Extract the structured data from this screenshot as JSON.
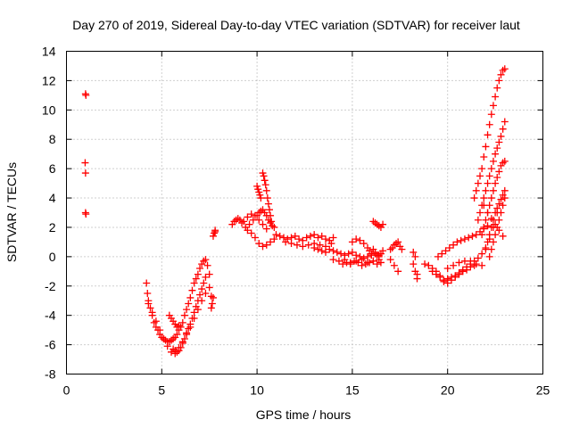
{
  "chart_data": {
    "type": "scatter",
    "title": "Day 270 of 2019, Sidereal Day-to-day VTEC variation (SDTVAR) for receiver laut",
    "xlabel": "GPS time / hours",
    "ylabel": "SDTVAR / TECUs",
    "xlim": [
      0,
      25
    ],
    "ylim": [
      -8,
      14
    ],
    "xticks": [
      0,
      5,
      10,
      15,
      20,
      25
    ],
    "yticks": [
      -8,
      -6,
      -4,
      -2,
      0,
      2,
      4,
      6,
      8,
      10,
      12,
      14
    ],
    "grid": true,
    "marker": "plus",
    "series": [
      {
        "name": "SDTVAR",
        "color": "#ff0000",
        "x": [
          1.0,
          1.02,
          0.98,
          1.0,
          1.02,
          1.0,
          4.2,
          4.25,
          4.3,
          4.4,
          4.5,
          4.6,
          4.7,
          4.8,
          4.9,
          5.0,
          5.1,
          5.2,
          5.3,
          5.4,
          5.5,
          5.6,
          5.7,
          5.8,
          5.9,
          6.0,
          6.1,
          6.2,
          6.3,
          6.4,
          6.5,
          6.6,
          6.7,
          6.8,
          6.9,
          7.0,
          7.1,
          7.2,
          7.3,
          7.4,
          7.5,
          4.3,
          4.5,
          4.7,
          4.9,
          5.1,
          5.3,
          5.5,
          5.7,
          5.9,
          6.1,
          6.3,
          6.5,
          6.7,
          6.9,
          7.1,
          7.3,
          7.5,
          7.6,
          5.6,
          5.7,
          5.8,
          5.9,
          6.0,
          6.1,
          6.2,
          6.3,
          6.4,
          6.5,
          6.6,
          6.7,
          6.8,
          6.9,
          7.0,
          7.1,
          7.2,
          7.3,
          7.6,
          7.65,
          7.7,
          7.7,
          7.75,
          7.8,
          7.8,
          5.4,
          5.5,
          5.6,
          5.7,
          5.8,
          5.9,
          8.7,
          8.8,
          8.9,
          9.0,
          9.1,
          9.2,
          9.4,
          9.6,
          9.8,
          10.0,
          10.1,
          10.2,
          10.3,
          10.4,
          10.5,
          10.6,
          10.7,
          9.5,
          9.7,
          9.9,
          10.1,
          10.3,
          10.5,
          10.7,
          10.9,
          9.3,
          9.5,
          9.7,
          9.9,
          10.1,
          10.3,
          10.5,
          10.0,
          10.05,
          10.1,
          10.15,
          10.2,
          10.3,
          10.35,
          10.4,
          10.45,
          10.5,
          10.55,
          10.6,
          10.65,
          10.7,
          10.75,
          10.8,
          10.9,
          11.0,
          11.2,
          11.4,
          11.6,
          11.8,
          12.0,
          12.2,
          12.4,
          12.6,
          12.8,
          13.0,
          13.2,
          13.4,
          13.6,
          13.8,
          14.0,
          11.5,
          11.8,
          12.1,
          12.4,
          12.7,
          13.0,
          13.3,
          13.6,
          13.9,
          13.0,
          13.2,
          13.4,
          13.6,
          13.8,
          14.0,
          14.2,
          14.4,
          14.6,
          14.8,
          15.0,
          15.2,
          15.4,
          15.6,
          15.8,
          16.0,
          16.2,
          16.4,
          14.0,
          14.3,
          14.6,
          14.9,
          15.2,
          15.5,
          15.8,
          16.1,
          16.4,
          14.5,
          14.7,
          14.9,
          15.1,
          15.3,
          15.5,
          15.7,
          15.9,
          16.1,
          16.3,
          16.5,
          15.0,
          15.2,
          15.4,
          15.6,
          15.8,
          15.9,
          16.0,
          16.1,
          16.2,
          16.3,
          16.4,
          16.5,
          16.6,
          16.1,
          16.2,
          16.3,
          16.4,
          16.5,
          16.6,
          17.0,
          17.1,
          17.2,
          17.3,
          17.4,
          17.5,
          17.6,
          17.0,
          17.2,
          17.4,
          18.2,
          18.3,
          18.4,
          18.3,
          18.2,
          18.4,
          18.8,
          19.0,
          19.2,
          19.4,
          19.6,
          19.8,
          20.0,
          20.2,
          20.4,
          20.6,
          20.8,
          21.0,
          21.2,
          21.4,
          19.2,
          19.4,
          19.6,
          19.8,
          20.0,
          20.2,
          20.4,
          20.6,
          20.8,
          21.0,
          21.2,
          21.4,
          21.6,
          21.8,
          22.0,
          22.2,
          22.4,
          22.6,
          19.5,
          19.7,
          19.9,
          20.1,
          20.3,
          20.5,
          20.7,
          20.9,
          21.1,
          21.3,
          21.5,
          21.7,
          21.9,
          22.1,
          20.0,
          20.3,
          20.6,
          20.9,
          21.2,
          21.5,
          21.8,
          21.4,
          21.5,
          21.6,
          21.7,
          21.8,
          21.9,
          22.0,
          22.1,
          22.2,
          22.3,
          22.4,
          22.5,
          22.6,
          22.7,
          22.8,
          22.9,
          23.0,
          21.6,
          21.7,
          21.8,
          21.9,
          22.0,
          22.1,
          22.2,
          22.3,
          22.4,
          22.5,
          22.6,
          22.7,
          22.8,
          22.9,
          23.0,
          21.8,
          21.9,
          22.0,
          22.1,
          22.2,
          22.3,
          22.4,
          22.5,
          22.6,
          22.7,
          22.8,
          22.9,
          23.0,
          22.0,
          22.1,
          22.2,
          22.3,
          22.4,
          22.5,
          22.6,
          22.7,
          22.8,
          22.9,
          23.0,
          22.2,
          22.3,
          22.4,
          22.5,
          22.6,
          22.7,
          22.8,
          22.9,
          23.0,
          21.9,
          22.1,
          22.3,
          22.5,
          22.7,
          22.9
        ],
        "y": [
          11.1,
          11.0,
          6.4,
          5.7,
          2.9,
          3.0,
          -1.8,
          -2.5,
          -3.0,
          -3.5,
          -4.0,
          -4.5,
          -4.8,
          -5.0,
          -5.3,
          -5.5,
          -5.6,
          -5.7,
          -5.8,
          -5.8,
          -5.7,
          -5.6,
          -5.5,
          -5.3,
          -5.0,
          -4.8,
          -4.5,
          -4.0,
          -3.6,
          -3.2,
          -2.8,
          -2.3,
          -1.8,
          -1.5,
          -1.2,
          -0.8,
          -0.5,
          -0.3,
          -0.2,
          -0.6,
          -1.2,
          -3.2,
          -3.8,
          -4.4,
          -5.0,
          -5.6,
          -6.1,
          -6.5,
          -6.4,
          -6.2,
          -5.8,
          -5.3,
          -4.8,
          -4.2,
          -3.6,
          -3.0,
          -2.5,
          -2.1,
          -2.7,
          -6.3,
          -6.6,
          -6.5,
          -6.4,
          -6.2,
          -5.9,
          -5.6,
          -5.2,
          -4.9,
          -4.6,
          -4.2,
          -3.8,
          -3.4,
          -3.0,
          -2.6,
          -2.2,
          -1.8,
          -1.4,
          -3.5,
          -3.2,
          -2.8,
          1.4,
          1.6,
          1.7,
          1.8,
          -4.0,
          -4.2,
          -4.4,
          -4.6,
          -4.8,
          -4.7,
          2.2,
          2.4,
          2.5,
          2.6,
          2.5,
          2.3,
          2.0,
          2.2,
          2.5,
          2.8,
          3.0,
          3.1,
          3.2,
          3.0,
          2.8,
          2.5,
          2.3,
          1.8,
          1.6,
          1.3,
          0.9,
          0.7,
          0.8,
          1.0,
          1.2,
          2.4,
          2.7,
          2.9,
          2.8,
          2.5,
          2.2,
          1.9,
          4.8,
          4.6,
          4.4,
          4.2,
          4.0,
          5.7,
          5.5,
          5.2,
          4.9,
          4.5,
          4.0,
          3.6,
          3.2,
          2.8,
          2.4,
          2.1,
          2.0,
          1.5,
          1.4,
          1.3,
          1.2,
          1.3,
          1.4,
          1.2,
          1.1,
          1.3,
          1.4,
          1.5,
          1.3,
          1.4,
          1.2,
          1.1,
          1.3,
          1.0,
          0.9,
          0.8,
          0.7,
          0.8,
          0.9,
          0.8,
          0.7,
          0.9,
          0.6,
          0.5,
          0.4,
          0.3,
          0.5,
          0.4,
          0.3,
          0.2,
          0.1,
          0.2,
          0.3,
          0.1,
          0.0,
          -0.1,
          0.0,
          0.1,
          0.2,
          0.1,
          -0.2,
          -0.3,
          -0.2,
          -0.4,
          -0.3,
          -0.2,
          -0.4,
          -0.3,
          -0.2,
          -0.5,
          -0.4,
          -0.5,
          -0.3,
          -0.4,
          -0.6,
          -0.5,
          -0.4,
          -0.3,
          -0.5,
          -0.4,
          1.0,
          1.2,
          1.1,
          0.9,
          0.6,
          0.4,
          0.2,
          0.5,
          0.3,
          0.1,
          0.0,
          0.2,
          0.4,
          2.4,
          2.3,
          2.2,
          2.1,
          2.0,
          2.2,
          0.5,
          0.6,
          0.8,
          0.9,
          1.0,
          0.7,
          0.5,
          -0.2,
          -0.6,
          -1.0,
          -0.5,
          -1.0,
          -1.5,
          0.0,
          0.3,
          -1.2,
          -0.5,
          -0.6,
          -0.8,
          -1.0,
          -1.3,
          -1.6,
          -1.8,
          -1.6,
          -1.4,
          -1.2,
          -1.0,
          -0.9,
          -0.7,
          -0.6,
          -1.0,
          -1.2,
          -1.4,
          -1.7,
          -1.5,
          -1.4,
          -1.3,
          -1.1,
          -0.9,
          -0.7,
          -0.5,
          -0.3,
          -0.1,
          0.2,
          0.6,
          1.2,
          2.0,
          3.0,
          0.0,
          0.2,
          0.4,
          0.6,
          0.8,
          1.0,
          1.1,
          1.2,
          1.3,
          1.4,
          1.5,
          1.7,
          1.9,
          2.1,
          -0.8,
          -0.6,
          -0.4,
          -0.3,
          -0.3,
          -0.5,
          -0.6,
          4.0,
          4.5,
          5.0,
          5.5,
          6.0,
          6.8,
          7.5,
          8.3,
          9.0,
          9.7,
          10.3,
          10.9,
          11.5,
          12.0,
          12.4,
          12.7,
          12.8,
          2.5,
          3.0,
          3.5,
          4.0,
          4.5,
          5.0,
          5.5,
          6.0,
          6.5,
          7.0,
          7.4,
          7.8,
          8.2,
          8.7,
          9.2,
          1.5,
          2.0,
          2.5,
          3.0,
          3.5,
          4.0,
          4.5,
          5.0,
          5.4,
          5.8,
          6.2,
          6.4,
          6.5,
          0.5,
          1.0,
          1.5,
          2.0,
          2.5,
          3.0,
          3.3,
          3.6,
          3.9,
          4.2,
          4.5,
          0.0,
          0.5,
          1.0,
          1.5,
          2.0,
          2.5,
          3.0,
          3.5,
          4.0,
          3.5,
          3.0,
          2.6,
          2.2,
          1.8,
          1.4
        ]
      }
    ]
  }
}
